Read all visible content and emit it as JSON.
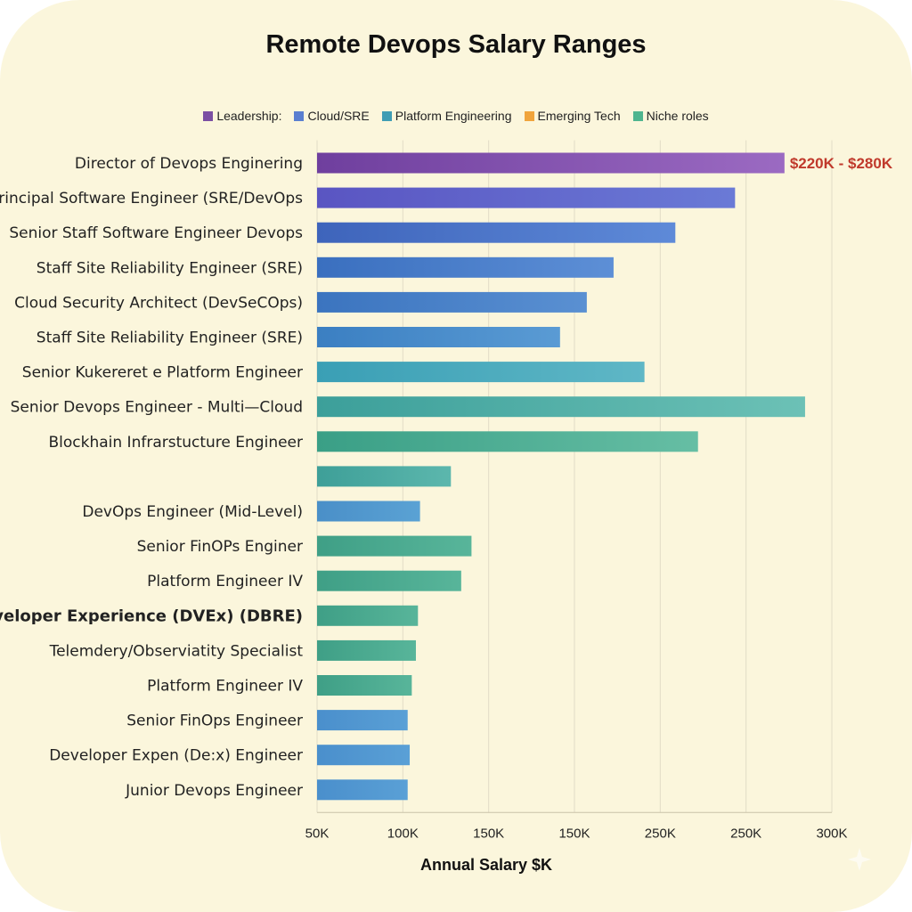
{
  "chart_data": {
    "type": "bar",
    "orientation": "horizontal",
    "title": "Remote Devops Salary Ranges",
    "xlabel": "Annual Salary $K",
    "ylabel": "",
    "xlim": [
      50,
      300
    ],
    "x_ticks": [
      "50K",
      "100K",
      "150K",
      "150K",
      "250K",
      "250K",
      "300K"
    ],
    "grid": true,
    "legend": [
      {
        "label": "Leadership:",
        "color": "#7b4fa3"
      },
      {
        "label": "Cloud/SRE",
        "color": "#5a7fd0"
      },
      {
        "label": "Platform Engineering",
        "color": "#3f9db4"
      },
      {
        "label": "Emerging Tech",
        "color": "#f0a43c"
      },
      {
        "label": "Niche roles",
        "color": "#4fb58f"
      }
    ],
    "annotation": {
      "text": "$220K - $280K",
      "color": "#c0392b"
    },
    "categories": [
      "Director of Devops Enginering",
      "Principal Software Engineer (SRE/DevOps",
      "Senior Staff Software Engineer Devops",
      "Staff Site Reliability Engineer (SRE)",
      "Cloud Security Architect (DevSeCOps)",
      "Staff Site Reliability Engineer (SRE)",
      "Senior Kukereret e Platform Engineer",
      "Senior Devops Engineer - Multi—Cloud",
      "Blockhain Infrarstucture Engineer",
      "",
      "DevOps Engineer (Mid-Level)",
      "Senior FinOPs Enginer",
      "Platform Engineer IV",
      "Developer Experience (DVEx) (DBRE)",
      "Telemdery/Observiatity Specialist",
      "Platform Engineer IV",
      "Senior FinOps Engineer",
      "Developer Expen (De:x) Engineer",
      "Junior Devops Engineer"
    ],
    "values": [
      277,
      253,
      224,
      194,
      181,
      168,
      209,
      287,
      235,
      115,
      100,
      125,
      120,
      99,
      98,
      96,
      94,
      95,
      94
    ],
    "bar_colors": [
      [
        "#6f3f9e",
        "#9b6ac2"
      ],
      [
        "#5a55c2",
        "#6a7ad6"
      ],
      [
        "#3e64bb",
        "#5e8ad8"
      ],
      [
        "#3a6fbf",
        "#5d8fd6"
      ],
      [
        "#3b74bf",
        "#5a90d2"
      ],
      [
        "#3b7fc2",
        "#5a9bd4"
      ],
      [
        "#3a9fb5",
        "#5fb7c6"
      ],
      [
        "#3c9f9a",
        "#6cc1b6"
      ],
      [
        "#3a9f86",
        "#66bea4"
      ],
      [
        "#3e9f98",
        "#5cb7ad"
      ],
      [
        "#4a8fc8",
        "#5aa2d4"
      ],
      [
        "#3f9f86",
        "#58b59a"
      ],
      [
        "#3f9f86",
        "#58b59a"
      ],
      [
        "#3f9f86",
        "#58b59a"
      ],
      [
        "#3f9f86",
        "#58b59a"
      ],
      [
        "#3f9f86",
        "#58b59a"
      ],
      [
        "#4a8fcc",
        "#5aa0d6"
      ],
      [
        "#4a8fcc",
        "#5aa0d6"
      ],
      [
        "#4a8fcc",
        "#5aa0d6"
      ]
    ],
    "bold_label_index": 13
  }
}
